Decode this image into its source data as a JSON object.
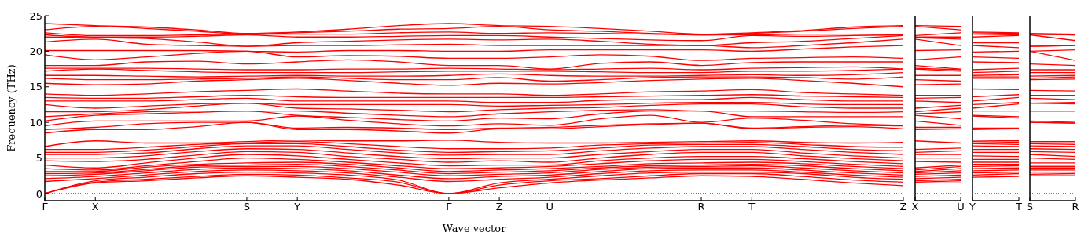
{
  "chart_data": [
    {
      "type": "line",
      "ylabel": "Frequency (THz)",
      "xlabel": "Wave vector",
      "categories": [
        "Γ",
        "X",
        null,
        null,
        "S",
        "Y",
        null,
        null,
        "Γ",
        "Z",
        "U",
        null,
        null,
        "R",
        "T",
        null,
        null,
        "Z"
      ],
      "ylim": [
        -1,
        25
      ],
      "yticks": [
        0,
        5,
        10,
        15,
        20,
        25
      ],
      "ref_lines": [
        {
          "axis": "y",
          "value": 0,
          "color": "#0000ff",
          "line_style": "dotted"
        }
      ],
      "series": [
        {
          "color": "#ff0000",
          "values": [
            0,
            1.5,
            1.8,
            2.2,
            2.5,
            2.3,
            2.0,
            1.2,
            0,
            0.8,
            1.5,
            1.9,
            2.2,
            2.5,
            2.4,
            2.0,
            1.5,
            1.1
          ]
        },
        {
          "color": "#ff0000",
          "values": [
            0,
            1.6,
            2.0,
            2.4,
            2.7,
            2.6,
            2.2,
            1.6,
            0,
            1.2,
            1.8,
            2.1,
            2.5,
            2.8,
            2.8,
            2.4,
            1.9,
            1.6
          ]
        },
        {
          "color": "#ff0000",
          "values": [
            0,
            1.8,
            2.3,
            2.8,
            3.0,
            2.9,
            2.6,
            1.9,
            0,
            1.5,
            2.0,
            2.5,
            2.9,
            3.0,
            3.0,
            2.8,
            2.3,
            2.0
          ]
        },
        {
          "color": "#ff0000",
          "values": [
            1.7,
            2.1,
            2.6,
            3.1,
            3.3,
            3.2,
            2.9,
            2.3,
            1.7,
            2.0,
            2.3,
            2.8,
            3.2,
            3.3,
            3.3,
            3.0,
            2.6,
            2.3
          ]
        },
        {
          "color": "#ff0000",
          "values": [
            2.1,
            2.4,
            2.9,
            3.4,
            3.6,
            3.5,
            3.2,
            2.6,
            2.1,
            2.4,
            2.6,
            3.1,
            3.5,
            3.6,
            3.6,
            3.3,
            2.9,
            2.6
          ]
        },
        {
          "color": "#ff0000",
          "values": [
            2.5,
            2.7,
            3.2,
            3.7,
            3.8,
            3.8,
            3.5,
            3.0,
            2.5,
            2.7,
            2.9,
            3.4,
            3.7,
            3.8,
            3.9,
            3.6,
            3.2,
            2.9
          ]
        },
        {
          "color": "#ff0000",
          "values": [
            2.8,
            2.9,
            3.4,
            3.9,
            4.0,
            4.1,
            3.8,
            3.3,
            2.8,
            3.0,
            3.2,
            3.6,
            3.9,
            4.0,
            4.1,
            3.9,
            3.5,
            3.2
          ]
        },
        {
          "color": "#ff0000",
          "values": [
            3.1,
            3.1,
            3.7,
            4.1,
            4.3,
            4.4,
            4.1,
            3.6,
            3.1,
            3.3,
            3.5,
            3.8,
            4.2,
            4.3,
            4.4,
            4.2,
            3.8,
            3.5
          ]
        },
        {
          "color": "#ff0000",
          "values": [
            3.5,
            3.3,
            3.9,
            4.5,
            5.0,
            4.8,
            4.4,
            3.9,
            3.5,
            3.6,
            3.8,
            4.2,
            4.6,
            4.8,
            4.8,
            4.5,
            4.1,
            3.8
          ]
        },
        {
          "color": "#ff0000",
          "values": [
            4.0,
            3.6,
            4.3,
            5.0,
            5.5,
            5.3,
            4.8,
            4.3,
            3.9,
            4.0,
            4.0,
            4.6,
            5.0,
            5.2,
            5.2,
            4.9,
            4.5,
            4.2
          ]
        },
        {
          "color": "#ff0000",
          "values": [
            4.6,
            4.5,
            4.8,
            5.4,
            5.9,
            5.8,
            5.2,
            4.8,
            4.4,
            4.6,
            4.4,
            5.0,
            5.5,
            5.8,
            5.8,
            5.3,
            4.9,
            4.6
          ]
        },
        {
          "color": "#ff0000",
          "values": [
            5.0,
            5.0,
            5.3,
            5.9,
            6.3,
            6.2,
            5.7,
            5.2,
            4.9,
            5.0,
            5.0,
            5.5,
            5.9,
            6.2,
            6.2,
            5.7,
            5.3,
            5.0
          ]
        },
        {
          "color": "#ff0000",
          "values": [
            5.5,
            5.5,
            5.7,
            6.3,
            6.7,
            6.7,
            6.2,
            5.7,
            5.4,
            5.5,
            5.5,
            6.0,
            6.4,
            6.6,
            6.6,
            6.2,
            5.8,
            5.5
          ]
        },
        {
          "color": "#ff0000",
          "values": [
            5.8,
            5.8,
            6.1,
            6.6,
            7.0,
            7.0,
            6.6,
            6.1,
            5.8,
            5.9,
            6.0,
            6.4,
            6.8,
            6.9,
            6.9,
            6.6,
            6.2,
            6.0
          ]
        },
        {
          "color": "#ff0000",
          "values": [
            6.2,
            6.2,
            6.5,
            6.9,
            7.1,
            7.3,
            7.0,
            6.6,
            6.3,
            6.3,
            6.4,
            6.8,
            7.0,
            7.1,
            7.2,
            6.9,
            6.6,
            6.5
          ]
        },
        {
          "color": "#ff0000",
          "values": [
            6.6,
            7.4,
            7.1,
            7.1,
            7.3,
            7.5,
            7.4,
            7.4,
            7.5,
            7.2,
            7.1,
            7.1,
            7.2,
            7.3,
            7.4,
            7.2,
            7.1,
            7.2
          ]
        },
        {
          "color": "#ff0000",
          "values": [
            8.5,
            9.0,
            9.0,
            9.4,
            10.0,
            9.0,
            9.0,
            8.8,
            8.5,
            9.1,
            9.1,
            9.4,
            9.7,
            9.9,
            9.1,
            9.3,
            9.4,
            9.1
          ]
        },
        {
          "color": "#ff0000",
          "values": [
            9.0,
            9.3,
            9.8,
            10.0,
            10.0,
            9.2,
            9.3,
            9.2,
            9.0,
            9.2,
            9.3,
            9.6,
            9.8,
            9.9,
            9.2,
            9.4,
            9.6,
            9.5
          ]
        },
        {
          "color": "#ff0000",
          "values": [
            9.5,
            10.2,
            10.2,
            10.2,
            10.2,
            10.9,
            10.3,
            9.8,
            9.5,
            9.8,
            9.6,
            10.5,
            11.0,
            10.0,
            10.6,
            10.3,
            9.8,
            9.6
          ]
        },
        {
          "color": "#ff0000",
          "values": [
            10.2,
            11.0,
            11.2,
            11.4,
            11.6,
            11.0,
            10.7,
            10.4,
            10.2,
            10.6,
            10.5,
            11.2,
            11.6,
            11.6,
            10.8,
            10.8,
            10.8,
            10.8
          ]
        },
        {
          "color": "#ff0000",
          "values": [
            10.8,
            11.2,
            11.5,
            11.6,
            11.6,
            11.6,
            11.3,
            11.0,
            10.8,
            11.2,
            11.5,
            11.7,
            11.8,
            11.6,
            11.6,
            11.5,
            11.4,
            11.5
          ]
        },
        {
          "color": "#ff0000",
          "values": [
            11.5,
            11.5,
            11.8,
            12.3,
            12.7,
            12.0,
            11.9,
            11.7,
            11.5,
            11.8,
            12.0,
            12.1,
            12.4,
            12.6,
            12.6,
            12.2,
            12.0,
            12.0
          ]
        },
        {
          "color": "#ff0000",
          "values": [
            12.5,
            12.0,
            12.3,
            12.6,
            12.7,
            12.5,
            12.5,
            12.5,
            12.5,
            12.3,
            12.4,
            12.5,
            12.7,
            12.8,
            12.8,
            12.6,
            12.5,
            12.5
          ]
        },
        {
          "color": "#ff0000",
          "values": [
            13.0,
            13.0,
            13.0,
            13.2,
            13.4,
            13.0,
            13.0,
            13.0,
            13.0,
            12.8,
            12.8,
            13.1,
            13.2,
            13.2,
            13.5,
            13.2,
            13.0,
            13.0
          ]
        },
        {
          "color": "#ff0000",
          "values": [
            13.5,
            13.4,
            13.4,
            13.6,
            13.8,
            13.6,
            13.5,
            13.5,
            13.5,
            13.5,
            13.5,
            13.6,
            13.7,
            13.8,
            13.9,
            13.7,
            13.6,
            13.5
          ]
        },
        {
          "color": "#ff0000",
          "values": [
            14.0,
            13.8,
            14.0,
            14.3,
            14.5,
            14.7,
            14.4,
            14.1,
            14.0,
            14.0,
            13.8,
            14.0,
            14.3,
            14.4,
            14.6,
            14.2,
            14.0,
            13.8
          ]
        },
        {
          "color": "#ff0000",
          "values": [
            15.5,
            15.3,
            15.4,
            15.8,
            16.0,
            16.2,
            15.9,
            15.5,
            15.2,
            15.5,
            15.4,
            15.6,
            15.9,
            16.1,
            16.2,
            15.9,
            15.5,
            15.0
          ]
        },
        {
          "color": "#ff0000",
          "values": [
            16.2,
            16.0,
            16.0,
            16.1,
            16.2,
            16.4,
            16.2,
            16.0,
            16.0,
            16.3,
            15.8,
            16.0,
            16.3,
            16.4,
            16.4,
            16.3,
            16.1,
            16.4
          ]
        },
        {
          "color": "#ff0000",
          "values": [
            16.6,
            16.6,
            16.5,
            16.4,
            16.5,
            16.6,
            16.5,
            16.5,
            16.6,
            16.8,
            16.6,
            16.5,
            16.5,
            16.6,
            16.7,
            16.6,
            16.7,
            17.0
          ]
        },
        {
          "color": "#ff0000",
          "values": [
            17.2,
            17.5,
            17.3,
            17.1,
            17.0,
            17.0,
            17.0,
            17.1,
            17.2,
            17.2,
            17.2,
            17.1,
            17.0,
            17.0,
            17.2,
            17.2,
            17.3,
            17.5
          ]
        },
        {
          "color": "#ff0000",
          "values": [
            17.6,
            17.6,
            17.6,
            17.5,
            17.4,
            17.4,
            17.5,
            17.5,
            17.6,
            17.5,
            17.4,
            17.5,
            17.6,
            17.4,
            17.6,
            17.7,
            17.8,
            17.5
          ]
        },
        {
          "color": "#ff0000",
          "values": [
            18.0,
            18.0,
            18.5,
            18.6,
            18.2,
            18.5,
            18.8,
            18.5,
            18.0,
            18.0,
            17.5,
            18.3,
            18.5,
            18.0,
            18.4,
            18.5,
            18.5,
            18.5
          ]
        },
        {
          "color": "#ff0000",
          "values": [
            19.5,
            18.8,
            19.2,
            19.7,
            20.0,
            19.2,
            19.4,
            19.3,
            19.0,
            19.0,
            19.2,
            19.5,
            19.3,
            18.7,
            19.0,
            19.1,
            19.2,
            19.0
          ]
        },
        {
          "color": "#ff0000",
          "values": [
            20.1,
            20.1,
            20.1,
            20.1,
            20.0,
            19.9,
            20.1,
            20.1,
            20.0,
            20.0,
            20.2,
            20.2,
            20.2,
            20.2,
            20.0,
            20.3,
            20.6,
            20.8
          ]
        },
        {
          "color": "#ff0000",
          "values": [
            21.3,
            21.7,
            21.0,
            20.8,
            20.7,
            20.8,
            20.8,
            20.9,
            21.0,
            20.8,
            20.8,
            20.8,
            20.8,
            20.8,
            20.5,
            20.8,
            21.2,
            21.7
          ]
        },
        {
          "color": "#ff0000",
          "values": [
            22.0,
            21.9,
            21.8,
            21.3,
            20.7,
            21.2,
            21.4,
            21.6,
            21.7,
            21.6,
            21.7,
            21.4,
            21.0,
            20.8,
            21.2,
            21.4,
            21.8,
            22.2
          ]
        },
        {
          "color": "#ff0000",
          "values": [
            22.3,
            22.0,
            22.0,
            22.1,
            22.3,
            22.0,
            22.0,
            22.1,
            22.2,
            22.2,
            22.0,
            21.8,
            21.6,
            21.5,
            22.2,
            22.1,
            22.2,
            22.3
          ]
        },
        {
          "color": "#ff0000",
          "values": [
            22.6,
            22.2,
            22.2,
            22.3,
            22.4,
            22.4,
            22.4,
            22.6,
            22.7,
            22.5,
            22.6,
            22.5,
            22.4,
            22.3,
            22.3,
            22.4,
            22.4,
            22.3
          ]
        },
        {
          "color": "#ff0000",
          "values": [
            23.0,
            23.5,
            23.2,
            22.8,
            22.4,
            22.6,
            22.8,
            23.1,
            23.2,
            23.5,
            23.0,
            22.8,
            22.5,
            22.3,
            22.5,
            22.8,
            23.2,
            23.5
          ]
        },
        {
          "color": "#ff0000",
          "values": [
            23.9,
            23.6,
            23.4,
            23.0,
            22.5,
            22.7,
            23.1,
            23.6,
            23.9,
            23.6,
            23.5,
            23.2,
            22.8,
            22.4,
            22.6,
            22.9,
            23.4,
            23.6
          ]
        }
      ]
    },
    {
      "type": "line",
      "categories": [
        "X",
        "U"
      ],
      "ylim": [
        -1,
        25
      ],
      "yticks": [
        0,
        5,
        10,
        15,
        20,
        25
      ],
      "tick_labels": "x",
      "ref_lines": [
        {
          "axis": "y",
          "value": 0,
          "color": "#0000ff",
          "line_style": "dotted"
        }
      ],
      "series": [
        {
          "color": "#ff0000",
          "values": [
            1.5,
            1.5
          ]
        },
        {
          "color": "#ff0000",
          "values": [
            1.6,
            1.8
          ]
        },
        {
          "color": "#ff0000",
          "values": [
            1.8,
            2.0
          ]
        },
        {
          "color": "#ff0000",
          "values": [
            2.1,
            2.3
          ]
        },
        {
          "color": "#ff0000",
          "values": [
            2.4,
            2.6
          ]
        },
        {
          "color": "#ff0000",
          "values": [
            2.7,
            2.9
          ]
        },
        {
          "color": "#ff0000",
          "values": [
            2.9,
            3.2
          ]
        },
        {
          "color": "#ff0000",
          "values": [
            3.1,
            3.5
          ]
        },
        {
          "color": "#ff0000",
          "values": [
            3.3,
            3.8
          ]
        },
        {
          "color": "#ff0000",
          "values": [
            3.6,
            4.0
          ]
        },
        {
          "color": "#ff0000",
          "values": [
            4.5,
            4.4
          ]
        },
        {
          "color": "#ff0000",
          "values": [
            5.0,
            5.0
          ]
        },
        {
          "color": "#ff0000",
          "values": [
            5.5,
            5.5
          ]
        },
        {
          "color": "#ff0000",
          "values": [
            5.8,
            6.0
          ]
        },
        {
          "color": "#ff0000",
          "values": [
            6.2,
            6.4
          ]
        },
        {
          "color": "#ff0000",
          "values": [
            7.4,
            7.1
          ]
        },
        {
          "color": "#ff0000",
          "values": [
            9.0,
            9.1
          ]
        },
        {
          "color": "#ff0000",
          "values": [
            9.3,
            9.3
          ]
        },
        {
          "color": "#ff0000",
          "values": [
            10.2,
            9.6
          ]
        },
        {
          "color": "#ff0000",
          "values": [
            11.0,
            10.5
          ]
        },
        {
          "color": "#ff0000",
          "values": [
            11.2,
            11.5
          ]
        },
        {
          "color": "#ff0000",
          "values": [
            11.5,
            12.0
          ]
        },
        {
          "color": "#ff0000",
          "values": [
            12.0,
            12.4
          ]
        },
        {
          "color": "#ff0000",
          "values": [
            13.0,
            12.8
          ]
        },
        {
          "color": "#ff0000",
          "values": [
            13.4,
            13.5
          ]
        },
        {
          "color": "#ff0000",
          "values": [
            13.8,
            13.8
          ]
        },
        {
          "color": "#ff0000",
          "values": [
            15.3,
            15.4
          ]
        },
        {
          "color": "#ff0000",
          "values": [
            16.0,
            15.8
          ]
        },
        {
          "color": "#ff0000",
          "values": [
            16.6,
            16.6
          ]
        },
        {
          "color": "#ff0000",
          "values": [
            17.5,
            17.2
          ]
        },
        {
          "color": "#ff0000",
          "values": [
            17.6,
            17.4
          ]
        },
        {
          "color": "#ff0000",
          "values": [
            18.0,
            17.5
          ]
        },
        {
          "color": "#ff0000",
          "values": [
            18.8,
            19.2
          ]
        },
        {
          "color": "#ff0000",
          "values": [
            20.1,
            20.2
          ]
        },
        {
          "color": "#ff0000",
          "values": [
            21.7,
            20.8
          ]
        },
        {
          "color": "#ff0000",
          "values": [
            21.9,
            21.7
          ]
        },
        {
          "color": "#ff0000",
          "values": [
            22.0,
            22.0
          ]
        },
        {
          "color": "#ff0000",
          "values": [
            22.2,
            22.6
          ]
        },
        {
          "color": "#ff0000",
          "values": [
            23.5,
            23.0
          ]
        },
        {
          "color": "#ff0000",
          "values": [
            23.6,
            23.5
          ]
        }
      ]
    },
    {
      "type": "line",
      "categories": [
        "Y",
        "T"
      ],
      "ylim": [
        -1,
        25
      ],
      "yticks": [
        0,
        5,
        10,
        15,
        20,
        25
      ],
      "tick_labels": "x",
      "ref_lines": [
        {
          "axis": "y",
          "value": 0,
          "color": "#0000ff",
          "line_style": "dotted"
        }
      ],
      "series": [
        {
          "color": "#ff0000",
          "values": [
            2.3,
            2.4
          ]
        },
        {
          "color": "#ff0000",
          "values": [
            2.6,
            2.8
          ]
        },
        {
          "color": "#ff0000",
          "values": [
            2.9,
            3.0
          ]
        },
        {
          "color": "#ff0000",
          "values": [
            3.2,
            3.3
          ]
        },
        {
          "color": "#ff0000",
          "values": [
            3.5,
            3.6
          ]
        },
        {
          "color": "#ff0000",
          "values": [
            3.8,
            3.9
          ]
        },
        {
          "color": "#ff0000",
          "values": [
            4.1,
            4.1
          ]
        },
        {
          "color": "#ff0000",
          "values": [
            4.4,
            4.4
          ]
        },
        {
          "color": "#ff0000",
          "values": [
            4.8,
            4.8
          ]
        },
        {
          "color": "#ff0000",
          "values": [
            5.3,
            5.2
          ]
        },
        {
          "color": "#ff0000",
          "values": [
            5.8,
            5.8
          ]
        },
        {
          "color": "#ff0000",
          "values": [
            6.2,
            6.2
          ]
        },
        {
          "color": "#ff0000",
          "values": [
            6.7,
            6.6
          ]
        },
        {
          "color": "#ff0000",
          "values": [
            7.0,
            6.9
          ]
        },
        {
          "color": "#ff0000",
          "values": [
            7.3,
            7.2
          ]
        },
        {
          "color": "#ff0000",
          "values": [
            7.5,
            7.4
          ]
        },
        {
          "color": "#ff0000",
          "values": [
            9.0,
            9.1
          ]
        },
        {
          "color": "#ff0000",
          "values": [
            9.2,
            9.2
          ]
        },
        {
          "color": "#ff0000",
          "values": [
            10.9,
            10.6
          ]
        },
        {
          "color": "#ff0000",
          "values": [
            11.0,
            10.8
          ]
        },
        {
          "color": "#ff0000",
          "values": [
            11.6,
            11.6
          ]
        },
        {
          "color": "#ff0000",
          "values": [
            12.0,
            12.6
          ]
        },
        {
          "color": "#ff0000",
          "values": [
            12.5,
            12.8
          ]
        },
        {
          "color": "#ff0000",
          "values": [
            13.0,
            13.5
          ]
        },
        {
          "color": "#ff0000",
          "values": [
            13.6,
            13.9
          ]
        },
        {
          "color": "#ff0000",
          "values": [
            14.7,
            14.6
          ]
        },
        {
          "color": "#ff0000",
          "values": [
            16.2,
            16.2
          ]
        },
        {
          "color": "#ff0000",
          "values": [
            16.4,
            16.4
          ]
        },
        {
          "color": "#ff0000",
          "values": [
            16.6,
            16.7
          ]
        },
        {
          "color": "#ff0000",
          "values": [
            17.0,
            17.2
          ]
        },
        {
          "color": "#ff0000",
          "values": [
            17.4,
            17.6
          ]
        },
        {
          "color": "#ff0000",
          "values": [
            18.5,
            18.4
          ]
        },
        {
          "color": "#ff0000",
          "values": [
            19.2,
            19.0
          ]
        },
        {
          "color": "#ff0000",
          "values": [
            19.9,
            20.0
          ]
        },
        {
          "color": "#ff0000",
          "values": [
            20.8,
            20.5
          ]
        },
        {
          "color": "#ff0000",
          "values": [
            21.2,
            21.2
          ]
        },
        {
          "color": "#ff0000",
          "values": [
            22.0,
            22.2
          ]
        },
        {
          "color": "#ff0000",
          "values": [
            22.4,
            22.3
          ]
        },
        {
          "color": "#ff0000",
          "values": [
            22.6,
            22.5
          ]
        },
        {
          "color": "#ff0000",
          "values": [
            22.7,
            22.6
          ]
        }
      ]
    },
    {
      "type": "line",
      "categories": [
        "S",
        "R"
      ],
      "ylim": [
        -1,
        25
      ],
      "yticks": [
        0,
        5,
        10,
        15,
        20,
        25
      ],
      "tick_labels": "x",
      "ref_lines": [
        {
          "axis": "y",
          "value": 0,
          "color": "#0000ff",
          "line_style": "dotted"
        }
      ],
      "series": [
        {
          "color": "#ff0000",
          "values": [
            2.5,
            2.5
          ]
        },
        {
          "color": "#ff0000",
          "values": [
            2.7,
            2.8
          ]
        },
        {
          "color": "#ff0000",
          "values": [
            3.0,
            3.0
          ]
        },
        {
          "color": "#ff0000",
          "values": [
            3.3,
            3.3
          ]
        },
        {
          "color": "#ff0000",
          "values": [
            3.6,
            3.6
          ]
        },
        {
          "color": "#ff0000",
          "values": [
            3.8,
            3.8
          ]
        },
        {
          "color": "#ff0000",
          "values": [
            4.0,
            4.0
          ]
        },
        {
          "color": "#ff0000",
          "values": [
            4.3,
            4.3
          ]
        },
        {
          "color": "#ff0000",
          "values": [
            5.0,
            4.8
          ]
        },
        {
          "color": "#ff0000",
          "values": [
            5.5,
            5.2
          ]
        },
        {
          "color": "#ff0000",
          "values": [
            5.9,
            5.8
          ]
        },
        {
          "color": "#ff0000",
          "values": [
            6.3,
            6.2
          ]
        },
        {
          "color": "#ff0000",
          "values": [
            6.7,
            6.6
          ]
        },
        {
          "color": "#ff0000",
          "values": [
            7.0,
            6.9
          ]
        },
        {
          "color": "#ff0000",
          "values": [
            7.1,
            7.1
          ]
        },
        {
          "color": "#ff0000",
          "values": [
            7.3,
            7.3
          ]
        },
        {
          "color": "#ff0000",
          "values": [
            10.0,
            9.9
          ]
        },
        {
          "color": "#ff0000",
          "values": [
            10.0,
            9.9
          ]
        },
        {
          "color": "#ff0000",
          "values": [
            10.2,
            10.0
          ]
        },
        {
          "color": "#ff0000",
          "values": [
            11.6,
            11.6
          ]
        },
        {
          "color": "#ff0000",
          "values": [
            11.6,
            11.6
          ]
        },
        {
          "color": "#ff0000",
          "values": [
            12.7,
            12.6
          ]
        },
        {
          "color": "#ff0000",
          "values": [
            12.7,
            12.8
          ]
        },
        {
          "color": "#ff0000",
          "values": [
            13.4,
            13.2
          ]
        },
        {
          "color": "#ff0000",
          "values": [
            13.8,
            13.8
          ]
        },
        {
          "color": "#ff0000",
          "values": [
            14.5,
            14.4
          ]
        },
        {
          "color": "#ff0000",
          "values": [
            16.0,
            16.1
          ]
        },
        {
          "color": "#ff0000",
          "values": [
            16.2,
            16.4
          ]
        },
        {
          "color": "#ff0000",
          "values": [
            16.5,
            16.6
          ]
        },
        {
          "color": "#ff0000",
          "values": [
            17.0,
            17.0
          ]
        },
        {
          "color": "#ff0000",
          "values": [
            17.4,
            17.4
          ]
        },
        {
          "color": "#ff0000",
          "values": [
            18.2,
            18.0
          ]
        },
        {
          "color": "#ff0000",
          "values": [
            20.0,
            18.7
          ]
        },
        {
          "color": "#ff0000",
          "values": [
            20.0,
            20.2
          ]
        },
        {
          "color": "#ff0000",
          "values": [
            20.7,
            20.8
          ]
        },
        {
          "color": "#ff0000",
          "values": [
            20.7,
            20.8
          ]
        },
        {
          "color": "#ff0000",
          "values": [
            22.3,
            21.5
          ]
        },
        {
          "color": "#ff0000",
          "values": [
            22.4,
            22.3
          ]
        },
        {
          "color": "#ff0000",
          "values": [
            22.4,
            22.3
          ]
        },
        {
          "color": "#ff0000",
          "values": [
            22.5,
            22.4
          ]
        }
      ]
    }
  ]
}
